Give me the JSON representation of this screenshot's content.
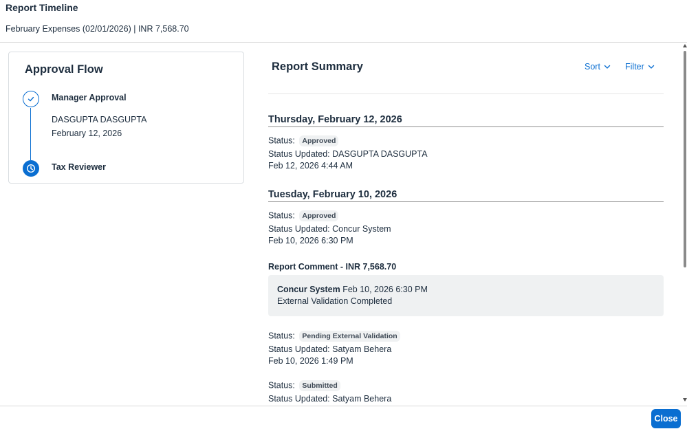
{
  "header": {
    "title": "Report Timeline",
    "subtitle": "February Expenses (02/01/2026) | INR 7,568.70"
  },
  "approval_flow": {
    "title": "Approval Flow",
    "steps": [
      {
        "label": "Manager Approval",
        "approver": "DASGUPTA DASGUPTA",
        "date": "February 12, 2026",
        "state": "completed",
        "icon": "check-icon"
      },
      {
        "label": "Tax Reviewer",
        "state": "current",
        "icon": "clock-icon"
      }
    ]
  },
  "summary": {
    "title": "Report Summary",
    "sort_label": "Sort",
    "filter_label": "Filter",
    "groups": [
      {
        "date": "Thursday, February 12, 2026",
        "entries": [
          {
            "status_label": "Status:",
            "status": "Approved",
            "updated_by": "Status Updated: DASGUPTA DASGUPTA",
            "timestamp": "Feb 12, 2026 4:44 AM"
          }
        ]
      },
      {
        "date": "Tuesday, February 10, 2026",
        "entries": [
          {
            "status_label": "Status:",
            "status": "Approved",
            "updated_by": "Status Updated: Concur System",
            "timestamp": "Feb 10, 2026 6:30 PM"
          },
          {
            "status_label": "Status:",
            "status": "Pending External Validation",
            "updated_by": "Status Updated: Satyam Behera",
            "timestamp": "Feb 10, 2026 1:49 PM"
          },
          {
            "status_label": "Status:",
            "status": "Submitted",
            "updated_by": "Status Updated: Satyam Behera"
          }
        ]
      }
    ],
    "comment": {
      "label": "Report Comment - INR 7,568.70",
      "author": "Concur System",
      "timestamp": "Feb 10, 2026 6:30 PM",
      "text": "External Validation Completed"
    }
  },
  "footer": {
    "close_label": "Close"
  },
  "colors": {
    "accent": "#0a6ed1",
    "text": "#1d2d3e",
    "badge_bg": "#eff1f2",
    "comment_bg": "#eff1f2"
  }
}
